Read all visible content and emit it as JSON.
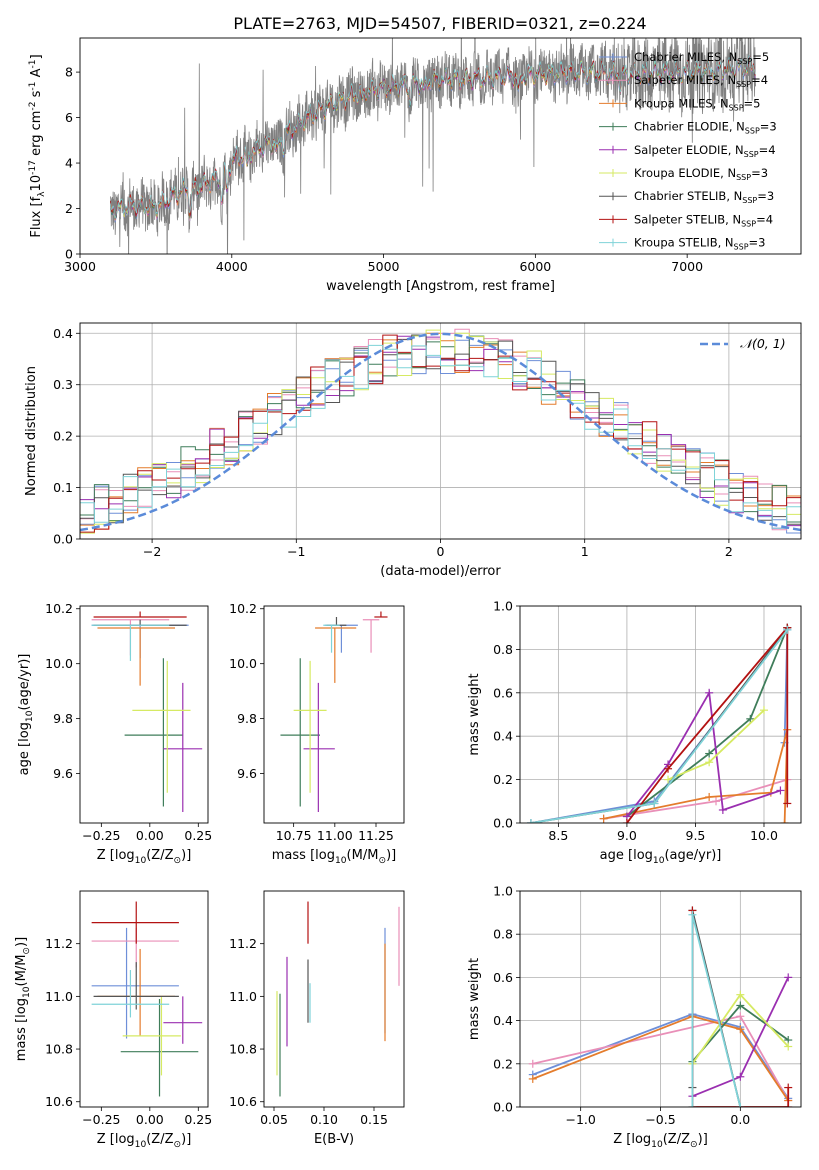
{
  "figure": {
    "title": "PLATE=2763, MJD=54507, FIBERID=0321, z=0.224"
  },
  "models": [
    {
      "name": "Chabrier MILES, N$_{SSP}$=5",
      "label": "Chabrier MILES, N",
      "sub": "SSP",
      "n": "=5",
      "color": "#6e8fd8"
    },
    {
      "name": "Salpeter MILES, N$_{SSP}$=4",
      "label": "Salpeter MILES, N",
      "sub": "SSP",
      "n": "=4",
      "color": "#e98fb8"
    },
    {
      "name": "Kroupa MILES, N$_{SSP}$=5",
      "label": "Kroupa MILES, N",
      "sub": "SSP",
      "n": "=5",
      "color": "#e47c2c"
    },
    {
      "name": "Chabrier ELODIE, N$_{SSP}$=3",
      "label": "Chabrier ELODIE, N",
      "sub": "SSP",
      "n": "=3",
      "color": "#3f7d5a"
    },
    {
      "name": "Salpeter ELODIE, N$_{SSP}$=4",
      "label": "Salpeter ELODIE, N",
      "sub": "SSP",
      "n": "=4",
      "color": "#9a2fb0"
    },
    {
      "name": "Kroupa ELODIE, N$_{SSP}$=3",
      "label": "Kroupa ELODIE, N",
      "sub": "SSP",
      "n": "=3",
      "color": "#d6ea63"
    },
    {
      "name": "Chabrier STELIB, N$_{SSP}$=3",
      "label": "Chabrier STELIB, N",
      "sub": "SSP",
      "n": "=3",
      "color": "#555555"
    },
    {
      "name": "Salpeter STELIB, N$_{SSP}$=4",
      "label": "Salpeter STELIB, N",
      "sub": "SSP",
      "n": "=4",
      "color": "#b31212"
    },
    {
      "name": "Kroupa STELIB, N$_{SSP}$=3",
      "label": "Kroupa STELIB, N",
      "sub": "SSP",
      "n": "=3",
      "color": "#7fd3d8"
    }
  ],
  "chart_data": [
    {
      "id": "spectrum",
      "type": "line",
      "xlabel": "wavelength [Angstrom, rest frame]",
      "ylabel": "Flux [f$_\\lambda$10$^{-17}$ erg cm$^{-2}$ s$^{-1}$ A$^{-1}$]",
      "xlim": [
        3000,
        7750
      ],
      "ylim": [
        0,
        9.5
      ],
      "xticks": [
        3000,
        4000,
        5000,
        6000,
        7000
      ],
      "yticks": [
        0,
        2,
        4,
        6,
        8
      ],
      "data_color": "#808080",
      "data_start": 3200,
      "data_end": 7450,
      "continuum": {
        "x": [
          3200,
          3300,
          3400,
          3500,
          3600,
          3700,
          3800,
          3900,
          4000,
          4100,
          4200,
          4300,
          4400,
          4500,
          4600,
          4700,
          4800,
          4900,
          5000,
          5200,
          5400,
          5600,
          5800,
          6000,
          6200,
          6400,
          6600,
          6800,
          7000,
          7200,
          7400
        ],
        "y": [
          1.9,
          2.05,
          2.1,
          2.05,
          2.5,
          2.9,
          3.0,
          3.3,
          4.1,
          4.4,
          4.7,
          5.0,
          5.5,
          6.0,
          6.4,
          6.7,
          7.0,
          7.2,
          7.3,
          7.5,
          7.7,
          7.7,
          7.8,
          7.9,
          8.0,
          8.0,
          7.9,
          8.0,
          8.0,
          8.1,
          8.2
        ]
      },
      "legend_position": "upper right"
    },
    {
      "id": "residuals",
      "type": "histogram",
      "xlabel": "(data-model)/error",
      "ylabel": "Normed distribution",
      "xlim": [
        -2.5,
        2.5
      ],
      "ylim": [
        0,
        0.42
      ],
      "xticks": [
        -2,
        -1,
        0,
        1,
        2
      ],
      "yticks": [
        0.0,
        0.1,
        0.2,
        0.3,
        0.4
      ],
      "grid": true,
      "bin_width": 0.1,
      "reference": {
        "name": "$\\mathcal{N}(0,1)$",
        "label": "𝒩(0, 1)",
        "style": "dashed",
        "color": "#5b8bd9"
      },
      "legend_position": "upper right"
    },
    {
      "id": "age_vs_Z",
      "type": "errorbar",
      "xlabel": "Z [log$_{10}$(Z/Z$_\\odot$)]",
      "ylabel": "age [log$_{10}$(age/yr)]",
      "xlim": [
        -0.36,
        0.3
      ],
      "ylim": [
        9.42,
        10.21
      ],
      "xticks": [
        -0.25,
        0.0,
        0.25
      ],
      "yticks": [
        9.6,
        9.8,
        10.0,
        10.2
      ],
      "points": [
        {
          "x": -0.05,
          "xerr": [
            0.25,
            0.25
          ],
          "y": 10.14,
          "yerr": [
            0.12,
            0.0
          ]
        },
        {
          "x": -0.1,
          "xerr": [
            0.2,
            0.2
          ],
          "y": 10.16,
          "yerr": [
            0.13,
            0.0
          ]
        },
        {
          "x": -0.05,
          "xerr": [
            0.22,
            0.18
          ],
          "y": 10.13,
          "yerr": [
            0.21,
            0.0
          ]
        },
        {
          "x": 0.07,
          "xerr": [
            0.2,
            0.1
          ],
          "y": 9.74,
          "yerr": [
            0.26,
            0.28
          ]
        },
        {
          "x": 0.17,
          "xerr": [
            0.1,
            0.1
          ],
          "y": 9.69,
          "yerr": [
            0.23,
            0.24
          ]
        },
        {
          "x": 0.09,
          "xerr": [
            0.18,
            0.12
          ],
          "y": 9.83,
          "yerr": [
            0.3,
            0.18
          ]
        },
        {
          "x": -0.05,
          "xerr": [
            0.24,
            0.24
          ],
          "y": 10.14,
          "yerr": [
            0.0,
            0.02
          ]
        },
        {
          "x": -0.05,
          "xerr": [
            0.24,
            0.24
          ],
          "y": 10.17,
          "yerr": [
            0.0,
            0.02
          ]
        },
        {
          "x": -0.1,
          "xerr": [
            0.2,
            0.2
          ],
          "y": 10.14,
          "yerr": [
            0.13,
            0.0
          ]
        }
      ]
    },
    {
      "id": "age_vs_mass",
      "type": "errorbar",
      "xlabel": "mass [log$_{10}$(M/M$_\\odot$)]",
      "ylabel": "",
      "xlim": [
        10.57,
        11.42
      ],
      "ylim": [
        9.42,
        10.21
      ],
      "xticks": [
        10.75,
        11.0,
        11.25
      ],
      "yticks": [
        9.6,
        9.8,
        10.0,
        10.2
      ],
      "points": [
        {
          "x": 11.04,
          "xerr": [
            0.1,
            0.1
          ],
          "y": 10.14,
          "yerr": [
            0.1,
            0.0
          ]
        },
        {
          "x": 11.22,
          "xerr": [
            0.05,
            0.05
          ],
          "y": 10.16,
          "yerr": [
            0.12,
            0.0
          ]
        },
        {
          "x": 11.0,
          "xerr": [
            0.12,
            0.13
          ],
          "y": 10.13,
          "yerr": [
            0.2,
            0.0
          ]
        },
        {
          "x": 10.79,
          "xerr": [
            0.12,
            0.12
          ],
          "y": 9.74,
          "yerr": [
            0.26,
            0.28
          ]
        },
        {
          "x": 10.9,
          "xerr": [
            0.09,
            0.1
          ],
          "y": 9.69,
          "yerr": [
            0.23,
            0.24
          ]
        },
        {
          "x": 10.85,
          "xerr": [
            0.1,
            0.1
          ],
          "y": 9.83,
          "yerr": [
            0.3,
            0.18
          ]
        },
        {
          "x": 11.01,
          "xerr": [
            0.06,
            0.06
          ],
          "y": 10.14,
          "yerr": [
            0.0,
            0.03
          ]
        },
        {
          "x": 11.28,
          "xerr": [
            0.04,
            0.04
          ],
          "y": 10.17,
          "yerr": [
            0.0,
            0.02
          ]
        },
        {
          "x": 10.98,
          "xerr": [
            0.05,
            0.05
          ],
          "y": 10.14,
          "yerr": [
            0.1,
            0.0
          ]
        }
      ]
    },
    {
      "id": "massweight_vs_age",
      "type": "line",
      "xlabel": "age [log$_{10}$(age/yr)]",
      "ylabel": "mass weight",
      "xlim": [
        8.22,
        10.27
      ],
      "ylim": [
        0,
        1
      ],
      "xticks": [
        8.5,
        9.0,
        9.5,
        10.0
      ],
      "yticks": [
        0.0,
        0.2,
        0.4,
        0.6,
        0.8,
        1.0
      ],
      "grid": true,
      "series": [
        {
          "x": [
            8.3,
            9.2,
            10.17,
            10.15
          ],
          "y": [
            0.0,
            0.1,
            0.89,
            0.37
          ]
        },
        {
          "x": [
            8.83,
            9.65,
            10.17
          ],
          "y": [
            0.02,
            0.1,
            0.2
          ]
        },
        {
          "x": [
            8.83,
            9.6,
            10.05,
            10.17,
            10.15
          ],
          "y": [
            0.02,
            0.12,
            0.14,
            0.43,
            0.0
          ]
        },
        {
          "x": [
            9.0,
            9.6,
            9.9,
            10.17
          ],
          "y": [
            0.03,
            0.32,
            0.48,
            0.9
          ]
        },
        {
          "x": [
            9.0,
            9.3,
            9.6,
            9.7,
            10.12
          ],
          "y": [
            0.03,
            0.27,
            0.6,
            0.06,
            0.15
          ]
        },
        {
          "x": [
            9.3,
            9.6,
            10.0
          ],
          "y": [
            0.2,
            0.28,
            0.52
          ]
        },
        {
          "x": [
            8.3,
            9.2,
            10.17
          ],
          "y": [
            0.0,
            0.09,
            0.9
          ]
        },
        {
          "x": [
            9.0,
            9.3,
            10.17,
            10.17
          ],
          "y": [
            0.0,
            0.25,
            0.9,
            0.09
          ]
        },
        {
          "x": [
            8.3,
            9.2,
            10.17
          ],
          "y": [
            0.0,
            0.09,
            0.89
          ]
        }
      ]
    },
    {
      "id": "mass_vs_Z",
      "type": "errorbar",
      "xlabel": "Z [log$_{10}$(Z/Z$_\\odot$)]",
      "ylabel": "mass [log$_{10}$(M/M$_\\odot$)]",
      "xlim": [
        -0.36,
        0.3
      ],
      "ylim": [
        10.58,
        11.4
      ],
      "xticks": [
        -0.25,
        0.0,
        0.25
      ],
      "yticks": [
        10.6,
        10.8,
        11.0,
        11.2
      ],
      "points": [
        {
          "x": -0.12,
          "xerr": [
            0.18,
            0.27
          ],
          "y": 11.04,
          "yerr": [
            0.2,
            0.22
          ]
        },
        {
          "x": -0.07,
          "xerr": [
            0.23,
            0.22
          ],
          "y": 11.21,
          "yerr": [
            0.1,
            0.05
          ]
        },
        {
          "x": -0.05,
          "xerr": [
            0.22,
            0.18
          ],
          "y": 11.0,
          "yerr": [
            0.15,
            0.18
          ]
        },
        {
          "x": 0.05,
          "xerr": [
            0.2,
            0.2
          ],
          "y": 10.79,
          "yerr": [
            0.17,
            0.2
          ]
        },
        {
          "x": 0.17,
          "xerr": [
            0.1,
            0.1
          ],
          "y": 10.9,
          "yerr": [
            0.08,
            0.1
          ]
        },
        {
          "x": 0.06,
          "xerr": [
            0.2,
            0.1
          ],
          "y": 10.85,
          "yerr": [
            0.15,
            0.15
          ]
        },
        {
          "x": -0.07,
          "xerr": [
            0.22,
            0.22
          ],
          "y": 11.0,
          "yerr": [
            0.05,
            0.13
          ]
        },
        {
          "x": -0.07,
          "xerr": [
            0.23,
            0.22
          ],
          "y": 11.28,
          "yerr": [
            0.08,
            0.08
          ]
        },
        {
          "x": -0.1,
          "xerr": [
            0.2,
            0.2
          ],
          "y": 10.97,
          "yerr": [
            0.05,
            0.13
          ]
        }
      ]
    },
    {
      "id": "mass_vs_ebv",
      "type": "errorbar",
      "xlabel": "E(B-V)",
      "ylabel": "",
      "xlim": [
        0.04,
        0.18
      ],
      "ylim": [
        10.58,
        11.4
      ],
      "xticks": [
        0.05,
        0.1,
        0.15
      ],
      "yticks": [
        10.6,
        10.8,
        11.0,
        11.2
      ],
      "points": [
        {
          "x": 0.161,
          "xerr": [
            0,
            0
          ],
          "y": 11.04,
          "yerr": [
            0.18,
            0.22
          ]
        },
        {
          "x": 0.175,
          "xerr": [
            0,
            0
          ],
          "y": 11.21,
          "yerr": [
            0.17,
            0.13
          ]
        },
        {
          "x": 0.161,
          "xerr": [
            0,
            0
          ],
          "y": 11.0,
          "yerr": [
            0.17,
            0.2
          ]
        },
        {
          "x": 0.056,
          "xerr": [
            0,
            0
          ],
          "y": 10.79,
          "yerr": [
            0.17,
            0.22
          ]
        },
        {
          "x": 0.063,
          "xerr": [
            0,
            0
          ],
          "y": 10.99,
          "yerr": [
            0.18,
            0.16
          ]
        },
        {
          "x": 0.053,
          "xerr": [
            0,
            0
          ],
          "y": 10.85,
          "yerr": [
            0.15,
            0.17
          ]
        },
        {
          "x": 0.084,
          "xerr": [
            0,
            0
          ],
          "y": 11.0,
          "yerr": [
            0.1,
            0.14
          ]
        },
        {
          "x": 0.084,
          "xerr": [
            0,
            0
          ],
          "y": 11.28,
          "yerr": [
            0.08,
            0.08
          ]
        },
        {
          "x": 0.086,
          "xerr": [
            0,
            0
          ],
          "y": 10.97,
          "yerr": [
            0.07,
            0.08
          ]
        }
      ]
    },
    {
      "id": "massweight_vs_Z",
      "type": "line",
      "xlabel": "Z [log$_{10}$(Z/Z$_\\odot$)]",
      "ylabel": "mass weight",
      "xlim": [
        -1.38,
        0.38
      ],
      "ylim": [
        0,
        1
      ],
      "xticks": [
        -1.0,
        -0.5,
        0.0
      ],
      "yticks": [
        0.0,
        0.2,
        0.4,
        0.6,
        0.8,
        1.0
      ],
      "grid": true,
      "series": [
        {
          "x": [
            -1.3,
            -0.3,
            0.0,
            0.3
          ],
          "y": [
            0.15,
            0.43,
            0.37,
            0.04
          ]
        },
        {
          "x": [
            -1.3,
            0.0,
            0.3
          ],
          "y": [
            0.2,
            0.42,
            0.03
          ]
        },
        {
          "x": [
            -1.3,
            -0.3,
            0.0,
            0.3
          ],
          "y": [
            0.13,
            0.42,
            0.36,
            0.03
          ]
        },
        {
          "x": [
            -0.3,
            0.0,
            0.3
          ],
          "y": [
            0.21,
            0.47,
            0.31
          ]
        },
        {
          "x": [
            -0.3,
            0.0,
            0.3
          ],
          "y": [
            0.05,
            0.14,
            0.6
          ]
        },
        {
          "x": [
            -0.3,
            0.0,
            0.3
          ],
          "y": [
            0.2,
            0.52,
            0.28
          ]
        },
        {
          "x": [
            -0.3,
            -0.3,
            0.0
          ],
          "y": [
            0.09,
            0.91,
            0.0
          ]
        },
        {
          "x": [
            -0.3,
            -0.3,
            0.3,
            0.3
          ],
          "y": [
            0.91,
            0.0,
            0.0,
            0.09
          ]
        },
        {
          "x": [
            -0.3,
            -0.3,
            0.0
          ],
          "y": [
            0.0,
            0.89,
            0.0
          ]
        }
      ]
    }
  ]
}
